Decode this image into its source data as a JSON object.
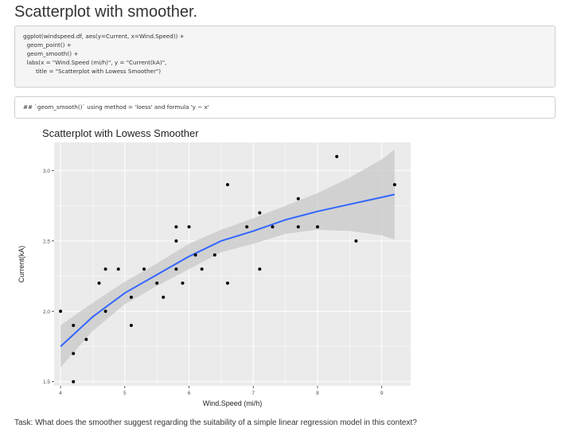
{
  "page": {
    "title": "Scatterplot with smoother.",
    "code_lines": [
      "ggplot(windspeed.df, aes(y=Current, x=Wind.Speed)) +",
      "  geom_point() +",
      "  geom_smooth() +",
      "  labs(x = \"Wind.Speed (mi/h)\", y = \"Current(kA)\",",
      "       title = \"Scatterplot with Lowess Smoother\")"
    ],
    "output_line": "## `geom_smooth()` using method = 'loess' and formula 'y ~ x'",
    "task": "Task: What does the smoother suggest regarding the suitability of a simple linear regression model in this context?"
  },
  "chart_data": {
    "type": "scatter",
    "title": "Scatterplot with Lowess Smoother",
    "xlabel": "Wind.Speed (mi/h)",
    "ylabel": "Current(kA)",
    "xlim": [
      3.9,
      9.45
    ],
    "ylim": [
      1.47,
      3.2
    ],
    "x_ticks": [
      4,
      5,
      6,
      7,
      8,
      9
    ],
    "y_ticks": [
      "1.5",
      "2.0",
      "2.5",
      "3.0"
    ],
    "y_tick_values": [
      1.5,
      2.0,
      2.5,
      3.0
    ],
    "grid": true,
    "points": [
      {
        "x": 4.0,
        "y": 2.0
      },
      {
        "x": 4.2,
        "y": 1.9
      },
      {
        "x": 4.2,
        "y": 1.7
      },
      {
        "x": 4.2,
        "y": 1.5
      },
      {
        "x": 4.4,
        "y": 1.8
      },
      {
        "x": 4.6,
        "y": 2.2
      },
      {
        "x": 4.7,
        "y": 2.0
      },
      {
        "x": 4.7,
        "y": 2.3
      },
      {
        "x": 4.9,
        "y": 2.3
      },
      {
        "x": 5.1,
        "y": 2.1
      },
      {
        "x": 5.1,
        "y": 1.9
      },
      {
        "x": 5.3,
        "y": 2.3
      },
      {
        "x": 5.5,
        "y": 2.2
      },
      {
        "x": 5.6,
        "y": 2.1
      },
      {
        "x": 5.8,
        "y": 2.6
      },
      {
        "x": 5.8,
        "y": 2.5
      },
      {
        "x": 5.8,
        "y": 2.3
      },
      {
        "x": 5.9,
        "y": 2.2
      },
      {
        "x": 6.0,
        "y": 2.6
      },
      {
        "x": 6.1,
        "y": 2.4
      },
      {
        "x": 6.2,
        "y": 2.3
      },
      {
        "x": 6.4,
        "y": 2.4
      },
      {
        "x": 6.6,
        "y": 2.9
      },
      {
        "x": 6.6,
        "y": 2.2
      },
      {
        "x": 6.9,
        "y": 2.6
      },
      {
        "x": 7.1,
        "y": 2.7
      },
      {
        "x": 7.1,
        "y": 2.3
      },
      {
        "x": 7.3,
        "y": 2.6
      },
      {
        "x": 7.7,
        "y": 2.8
      },
      {
        "x": 7.7,
        "y": 2.6
      },
      {
        "x": 8.0,
        "y": 2.6
      },
      {
        "x": 8.3,
        "y": 3.1
      },
      {
        "x": 8.6,
        "y": 2.5
      },
      {
        "x": 9.2,
        "y": 2.9
      }
    ],
    "smoother": {
      "x": [
        4.0,
        4.5,
        5.0,
        5.5,
        6.0,
        6.5,
        7.0,
        7.5,
        8.0,
        8.5,
        9.0,
        9.2
      ],
      "y": [
        1.75,
        1.96,
        2.13,
        2.26,
        2.39,
        2.5,
        2.57,
        2.65,
        2.71,
        2.76,
        2.81,
        2.83
      ],
      "lower": [
        1.6,
        1.86,
        2.05,
        2.18,
        2.3,
        2.42,
        2.48,
        2.55,
        2.58,
        2.57,
        2.54,
        2.51
      ],
      "upper": [
        1.9,
        2.06,
        2.21,
        2.34,
        2.48,
        2.58,
        2.66,
        2.75,
        2.84,
        2.95,
        3.08,
        3.15
      ]
    },
    "colors": {
      "panel": "#ebebeb",
      "grid": "#ffffff",
      "line": "#3366ff",
      "band": "#c8c8c8",
      "point": "#000000"
    }
  }
}
